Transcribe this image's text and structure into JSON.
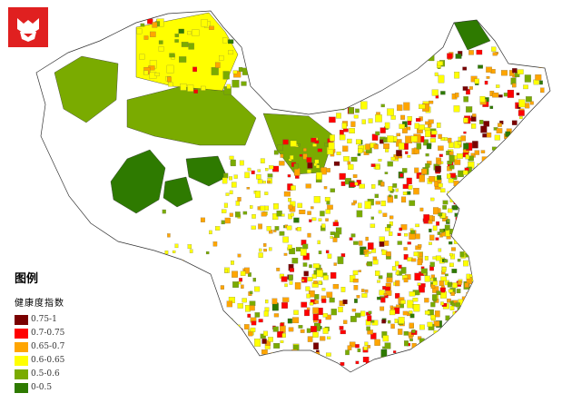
{
  "legend": {
    "title": "图例",
    "subtitle": "健康度指数",
    "items": [
      {
        "label": "0.75-1",
        "color": "#7a0000"
      },
      {
        "label": "0.7-0.75",
        "color": "#ff0000"
      },
      {
        "label": "0.65-0.7",
        "color": "#ffa500"
      },
      {
        "label": "0.6-0.65",
        "color": "#ffff00"
      },
      {
        "label": "0.5-0.6",
        "color": "#7aab00"
      },
      {
        "label": "0-0.5",
        "color": "#2e7a00"
      }
    ]
  },
  "logo": {
    "brand_color": "#e02020"
  }
}
